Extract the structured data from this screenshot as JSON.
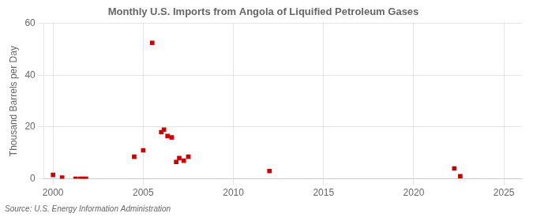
{
  "chart_data": {
    "type": "scatter",
    "title": "Monthly U.S. Imports from Angola of Liquified Petroleum Gases",
    "ylabel": "Thousand Barrels per Day",
    "source": "Source: U.S. Energy Information Administration",
    "x": [
      2000.0,
      2000.5,
      2001.25,
      2001.5,
      2001.67,
      2001.83,
      2004.5,
      2005.0,
      2005.5,
      2006.0,
      2006.15,
      2006.35,
      2006.58,
      2006.83,
      2007.0,
      2007.25,
      2007.5,
      2012.0,
      2022.25,
      2022.58
    ],
    "values": [
      1.5,
      0.5,
      0.0,
      0.0,
      0.0,
      0.0,
      8.5,
      11.0,
      52.5,
      18.0,
      19.0,
      16.5,
      16.0,
      6.5,
      8.0,
      7.0,
      8.5,
      3.0,
      4.0,
      1.0
    ],
    "color": "#CC0000",
    "marker": "square",
    "xlim": [
      1999.5,
      2026
    ],
    "ylim": [
      0,
      60
    ],
    "xticks": [
      2000,
      2005,
      2010,
      2015,
      2020,
      2025
    ],
    "yticks": [
      0,
      20,
      40,
      60
    ],
    "grid": true
  }
}
